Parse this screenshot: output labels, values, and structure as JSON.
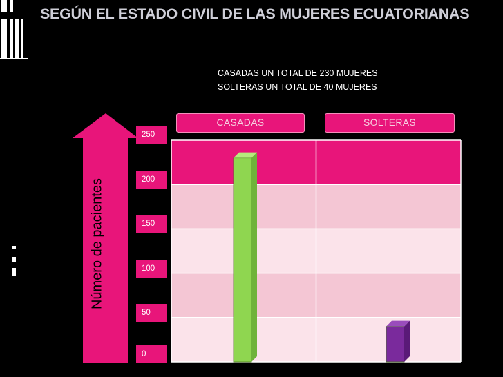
{
  "slide": {
    "title": "SEGÚN EL ESTADO CIVIL DE LAS MUJERES ECUATORIANAS",
    "notes": [
      "CASADAS UN TOTAL DE 230 MUJERES",
      "SOLTERAS UN TOTAL DE 40 MUJERES"
    ]
  },
  "colors": {
    "background": "#000000",
    "accent": "#e8157a",
    "row_dark": "#e8157a",
    "row_mid": "#f4c6d4",
    "row_light": "#fbe3ea",
    "bar_casadas": "#8fd650",
    "bar_solteras": "#7a2a9c"
  },
  "chart_data": {
    "type": "bar",
    "categories": [
      "CASADAS",
      "SOLTERAS"
    ],
    "values": [
      230,
      40
    ],
    "ylabel": "Número de pacientes",
    "yticks": [
      "250",
      "200",
      "150",
      "100",
      "50",
      "0"
    ],
    "ylim": [
      0,
      250
    ],
    "grid": true,
    "legend": "top"
  }
}
